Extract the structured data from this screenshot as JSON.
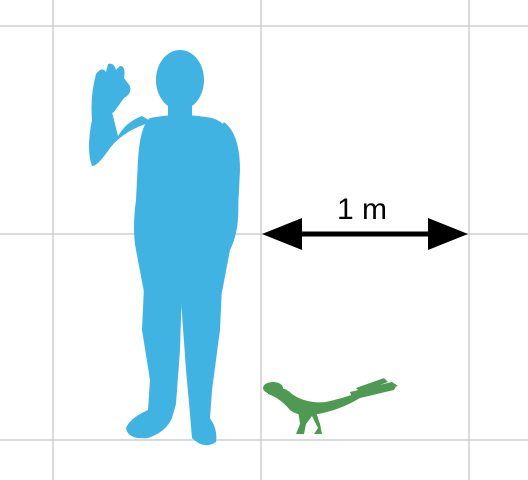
{
  "scale_bar": {
    "label": "1 m"
  },
  "colors": {
    "background": "#ffffff",
    "grid": "#c4c4c4",
    "human": "#41b3e3",
    "dinosaur": "#4e9a52",
    "arrow": "#000000"
  }
}
